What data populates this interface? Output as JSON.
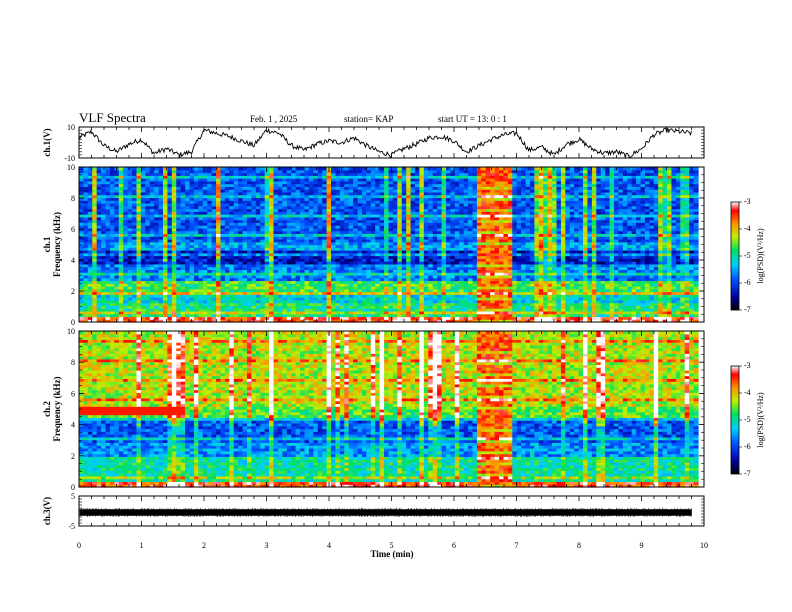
{
  "header": {
    "title": "VLF Spectra",
    "date": "Feb. 1 , 2025",
    "station": "station= KAP",
    "start": "start UT =  13: 0  : 1"
  },
  "chart_data": [
    {
      "type": "line",
      "ylabel": "ch.1(V)",
      "xlim": [
        0,
        10
      ],
      "ylim": [
        -10,
        10
      ],
      "yticks": [
        "10",
        "-10"
      ],
      "series": [
        {
          "x": [
            0,
            0.2,
            0.4,
            0.6,
            0.8,
            1.0,
            1.2,
            1.4,
            1.6,
            1.8,
            2.0,
            2.2,
            2.4,
            2.6,
            2.8,
            3.0,
            3.2,
            3.4,
            3.6,
            3.8,
            4.0,
            4.2,
            4.4,
            4.6,
            4.8,
            5.0,
            5.2,
            5.4,
            5.6,
            5.8,
            6.0,
            6.2,
            6.4,
            6.6,
            6.8,
            7.0,
            7.2,
            7.4,
            7.6,
            7.8,
            8.0,
            8.2,
            8.4,
            8.6,
            8.8,
            9.0,
            9.2,
            9.4,
            9.6,
            9.8
          ],
          "values": [
            3,
            7,
            -2,
            -6,
            -1,
            2,
            -7,
            -4,
            -8,
            -6,
            8,
            6,
            4,
            1,
            -2,
            8,
            6,
            -2,
            -5,
            -1,
            1,
            0,
            3,
            -2,
            -6,
            -8,
            -4,
            -1,
            3,
            4,
            1,
            -6,
            -2,
            2,
            5,
            6,
            -5,
            -3,
            -8,
            -1,
            2,
            -4,
            -7,
            -6,
            -9,
            -4,
            5,
            8,
            7,
            6
          ]
        }
      ]
    },
    {
      "type": "heatmap",
      "ylabel": "ch.1",
      "ylabel2": "Frequency (kHz)",
      "xlim": [
        0,
        10
      ],
      "ylim": [
        0,
        10
      ],
      "yticks": [
        "0",
        "2",
        "4",
        "6",
        "8",
        "10"
      ],
      "colorbar": {
        "label": "log(PSD)(V²/Hz)",
        "ticks": [
          "-3",
          "-4",
          "-5",
          "-6",
          "-7"
        ],
        "range": [
          -7,
          -3
        ]
      },
      "gap_minutes": [
        6.3,
        6.85
      ],
      "bands": [
        {
          "f_lo": 0.0,
          "f_hi": 0.4,
          "level": -3.4
        },
        {
          "f_lo": 0.4,
          "f_hi": 1.2,
          "level": -4.9
        },
        {
          "f_lo": 1.2,
          "f_hi": 1.8,
          "level": -5.2
        },
        {
          "f_lo": 1.8,
          "f_hi": 2.6,
          "level": -4.7
        },
        {
          "f_lo": 2.6,
          "f_hi": 3.8,
          "level": -5.7
        },
        {
          "f_lo": 3.8,
          "f_hi": 4.6,
          "level": -6.3
        },
        {
          "f_lo": 4.6,
          "f_hi": 5.2,
          "level": -5.5
        },
        {
          "f_lo": 5.2,
          "f_hi": 10.0,
          "level": -5.9
        }
      ]
    },
    {
      "type": "heatmap",
      "ylabel": "ch.2",
      "ylabel2": "Frequency (kHz)",
      "xlim": [
        0,
        10
      ],
      "ylim": [
        0,
        10
      ],
      "yticks": [
        "0",
        "2",
        "4",
        "6",
        "8",
        "10"
      ],
      "colorbar": {
        "label": "log(PSD)(V²/Hz)",
        "ticks": [
          "-3",
          "-4",
          "-5",
          "-6",
          "-7"
        ],
        "range": [
          -7,
          -3
        ]
      },
      "gap_minutes": [
        6.3,
        6.85
      ],
      "bands": [
        {
          "f_lo": 0.0,
          "f_hi": 0.4,
          "level": -3.5
        },
        {
          "f_lo": 0.4,
          "f_hi": 1.8,
          "level": -5.0
        },
        {
          "f_lo": 1.8,
          "f_hi": 2.8,
          "level": -5.6
        },
        {
          "f_lo": 2.8,
          "f_hi": 4.4,
          "level": -5.9
        },
        {
          "f_lo": 4.4,
          "f_hi": 5.2,
          "level": -4.6
        },
        {
          "f_lo": 5.2,
          "f_hi": 10.0,
          "level": -4.3
        }
      ]
    },
    {
      "type": "line",
      "ylabel": "ch.3(V)",
      "xlabel": "Time  (min)",
      "xlim": [
        0,
        10
      ],
      "ylim": [
        -5,
        5
      ],
      "yticks": [
        "5",
        "-5"
      ],
      "xticks": [
        "0",
        "1",
        "2",
        "3",
        "4",
        "5",
        "6",
        "7",
        "8",
        "9",
        "10"
      ],
      "series": [
        {
          "x": [
            0,
            9.8
          ],
          "values": [
            -0.5,
            -0.5
          ]
        }
      ]
    }
  ]
}
